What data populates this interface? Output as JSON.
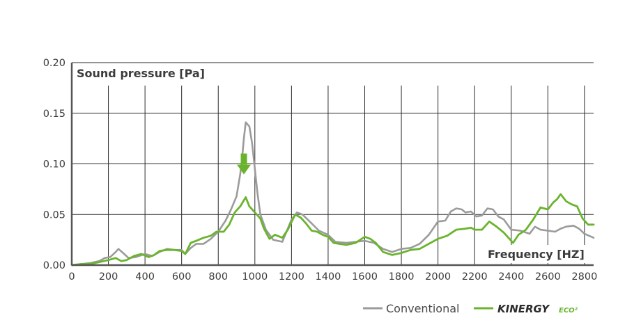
{
  "chart_data": {
    "type": "line",
    "ylabel": "Sound pressure [Pa]",
    "xlabel": "Frequency [HZ]",
    "xlim": [
      0,
      2850
    ],
    "ylim": [
      0,
      0.2
    ],
    "x_ticks": [
      0,
      200,
      400,
      600,
      800,
      1000,
      1200,
      1400,
      1600,
      1800,
      2000,
      2200,
      2400,
      2600,
      2800
    ],
    "y_ticks": [
      "0.00",
      "0.05",
      "0.10",
      "0.15",
      "0.20"
    ],
    "grid": true,
    "legend_position": "bottom-right",
    "annotation": {
      "type": "arrow-down",
      "x": 940,
      "y": 0.091,
      "color": "#6ab42d"
    },
    "series": [
      {
        "name": "Conventional",
        "color": "#9b9b9b",
        "points": [
          [
            0,
            0.0
          ],
          [
            50,
            0.001
          ],
          [
            100,
            0.002
          ],
          [
            150,
            0.004
          ],
          [
            180,
            0.007
          ],
          [
            210,
            0.008
          ],
          [
            240,
            0.013
          ],
          [
            255,
            0.016
          ],
          [
            280,
            0.012
          ],
          [
            310,
            0.007
          ],
          [
            350,
            0.008
          ],
          [
            400,
            0.011
          ],
          [
            440,
            0.009
          ],
          [
            480,
            0.013
          ],
          [
            520,
            0.016
          ],
          [
            560,
            0.015
          ],
          [
            600,
            0.015
          ],
          [
            620,
            0.011
          ],
          [
            650,
            0.017
          ],
          [
            680,
            0.021
          ],
          [
            720,
            0.021
          ],
          [
            760,
            0.026
          ],
          [
            800,
            0.033
          ],
          [
            840,
            0.044
          ],
          [
            870,
            0.055
          ],
          [
            900,
            0.068
          ],
          [
            920,
            0.09
          ],
          [
            930,
            0.105
          ],
          [
            940,
            0.125
          ],
          [
            950,
            0.141
          ],
          [
            970,
            0.137
          ],
          [
            985,
            0.12
          ],
          [
            1000,
            0.095
          ],
          [
            1015,
            0.07
          ],
          [
            1030,
            0.05
          ],
          [
            1060,
            0.035
          ],
          [
            1100,
            0.025
          ],
          [
            1150,
            0.023
          ],
          [
            1200,
            0.045
          ],
          [
            1230,
            0.052
          ],
          [
            1260,
            0.05
          ],
          [
            1300,
            0.043
          ],
          [
            1350,
            0.034
          ],
          [
            1400,
            0.03
          ],
          [
            1440,
            0.023
          ],
          [
            1500,
            0.022
          ],
          [
            1550,
            0.023
          ],
          [
            1600,
            0.024
          ],
          [
            1650,
            0.022
          ],
          [
            1700,
            0.016
          ],
          [
            1750,
            0.013
          ],
          [
            1800,
            0.016
          ],
          [
            1850,
            0.017
          ],
          [
            1900,
            0.021
          ],
          [
            1950,
            0.03
          ],
          [
            2000,
            0.043
          ],
          [
            2040,
            0.044
          ],
          [
            2070,
            0.053
          ],
          [
            2100,
            0.056
          ],
          [
            2130,
            0.055
          ],
          [
            2150,
            0.052
          ],
          [
            2180,
            0.053
          ],
          [
            2210,
            0.048
          ],
          [
            2240,
            0.049
          ],
          [
            2270,
            0.056
          ],
          [
            2300,
            0.055
          ],
          [
            2330,
            0.048
          ],
          [
            2360,
            0.045
          ],
          [
            2400,
            0.035
          ],
          [
            2450,
            0.034
          ],
          [
            2500,
            0.031
          ],
          [
            2530,
            0.038
          ],
          [
            2560,
            0.035
          ],
          [
            2600,
            0.034
          ],
          [
            2640,
            0.033
          ],
          [
            2670,
            0.036
          ],
          [
            2700,
            0.038
          ],
          [
            2740,
            0.039
          ],
          [
            2770,
            0.036
          ],
          [
            2800,
            0.031
          ],
          [
            2850,
            0.027
          ]
        ]
      },
      {
        "name": "KINERGYECO²",
        "color": "#6ab42d",
        "points": [
          [
            0,
            0.0
          ],
          [
            50,
            0.001
          ],
          [
            100,
            0.001
          ],
          [
            150,
            0.003
          ],
          [
            200,
            0.005
          ],
          [
            240,
            0.007
          ],
          [
            270,
            0.004
          ],
          [
            300,
            0.005
          ],
          [
            340,
            0.009
          ],
          [
            380,
            0.011
          ],
          [
            420,
            0.008
          ],
          [
            450,
            0.01
          ],
          [
            480,
            0.014
          ],
          [
            520,
            0.015
          ],
          [
            560,
            0.015
          ],
          [
            600,
            0.014
          ],
          [
            620,
            0.011
          ],
          [
            650,
            0.022
          ],
          [
            680,
            0.024
          ],
          [
            720,
            0.027
          ],
          [
            760,
            0.029
          ],
          [
            790,
            0.033
          ],
          [
            830,
            0.033
          ],
          [
            860,
            0.04
          ],
          [
            890,
            0.052
          ],
          [
            920,
            0.058
          ],
          [
            950,
            0.067
          ],
          [
            970,
            0.058
          ],
          [
            1000,
            0.052
          ],
          [
            1030,
            0.046
          ],
          [
            1050,
            0.036
          ],
          [
            1080,
            0.026
          ],
          [
            1110,
            0.03
          ],
          [
            1150,
            0.027
          ],
          [
            1180,
            0.035
          ],
          [
            1220,
            0.05
          ],
          [
            1250,
            0.047
          ],
          [
            1280,
            0.041
          ],
          [
            1310,
            0.034
          ],
          [
            1340,
            0.033
          ],
          [
            1370,
            0.03
          ],
          [
            1400,
            0.028
          ],
          [
            1430,
            0.022
          ],
          [
            1460,
            0.021
          ],
          [
            1500,
            0.02
          ],
          [
            1550,
            0.022
          ],
          [
            1600,
            0.028
          ],
          [
            1630,
            0.026
          ],
          [
            1660,
            0.022
          ],
          [
            1700,
            0.013
          ],
          [
            1750,
            0.01
          ],
          [
            1800,
            0.012
          ],
          [
            1850,
            0.015
          ],
          [
            1900,
            0.016
          ],
          [
            1950,
            0.021
          ],
          [
            2000,
            0.026
          ],
          [
            2050,
            0.029
          ],
          [
            2100,
            0.035
          ],
          [
            2150,
            0.036
          ],
          [
            2180,
            0.037
          ],
          [
            2200,
            0.035
          ],
          [
            2240,
            0.035
          ],
          [
            2280,
            0.043
          ],
          [
            2320,
            0.038
          ],
          [
            2360,
            0.032
          ],
          [
            2390,
            0.026
          ],
          [
            2410,
            0.022
          ],
          [
            2440,
            0.03
          ],
          [
            2480,
            0.035
          ],
          [
            2520,
            0.045
          ],
          [
            2560,
            0.057
          ],
          [
            2600,
            0.055
          ],
          [
            2630,
            0.062
          ],
          [
            2650,
            0.065
          ],
          [
            2670,
            0.07
          ],
          [
            2700,
            0.063
          ],
          [
            2730,
            0.06
          ],
          [
            2760,
            0.058
          ],
          [
            2790,
            0.046
          ],
          [
            2820,
            0.04
          ],
          [
            2850,
            0.04
          ]
        ]
      }
    ]
  },
  "legend": {
    "items": [
      {
        "label": "Conventional",
        "color": "#9b9b9b"
      },
      {
        "label": "KINERGY",
        "sublabel": "ECO²",
        "color": "#6ab42d"
      }
    ]
  }
}
